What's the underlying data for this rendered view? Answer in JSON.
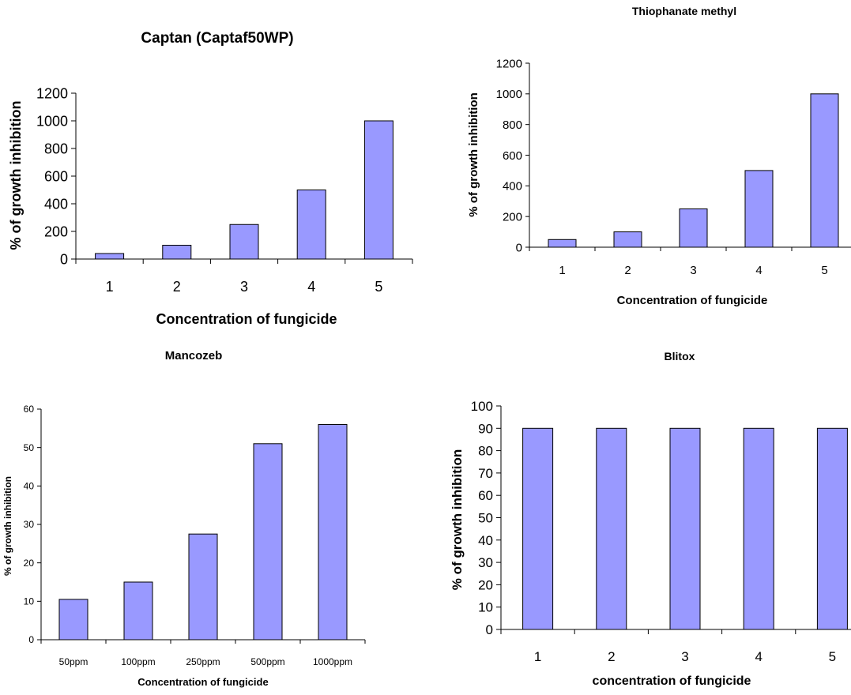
{
  "colors": {
    "bar_fill": "#9999ff",
    "bar_stroke": "#000000",
    "axis": "#000000"
  },
  "chart_data": [
    {
      "type": "bar",
      "title": "Captan (Captaf50WP)",
      "xlabel": "Concentration of fungicide",
      "ylabel": "% of growth inhibition",
      "categories": [
        "1",
        "2",
        "3",
        "4",
        "5"
      ],
      "values": [
        40,
        100,
        250,
        500,
        1000
      ],
      "ylim": [
        0,
        1200
      ],
      "yticks": [
        "0",
        "200",
        "400",
        "600",
        "800",
        "1000",
        "1200"
      ],
      "grid": false
    },
    {
      "type": "bar",
      "title": "Thiophanate methyl",
      "xlabel": "Concentration of fungicide",
      "ylabel": "% of growth inhibition",
      "categories": [
        "1",
        "2",
        "3",
        "4",
        "5"
      ],
      "values": [
        50,
        100,
        250,
        500,
        1000
      ],
      "ylim": [
        0,
        1200
      ],
      "yticks": [
        "0",
        "200",
        "400",
        "600",
        "800",
        "1000",
        "1200"
      ],
      "grid": false
    },
    {
      "type": "bar",
      "title": "Mancozeb",
      "xlabel": "Concentration of fungicide",
      "ylabel": "% of growth inhibition",
      "categories": [
        "50ppm",
        "100ppm",
        "250ppm",
        "500ppm",
        "1000ppm"
      ],
      "values": [
        10.5,
        15,
        27.5,
        51,
        56
      ],
      "ylim": [
        0,
        60
      ],
      "yticks": [
        "0",
        "10",
        "20",
        "30",
        "40",
        "50",
        "60"
      ],
      "grid": false
    },
    {
      "type": "bar",
      "title": "Blitox",
      "xlabel": "concentration of fungicide",
      "ylabel": "% of growth inhibition",
      "categories": [
        "1",
        "2",
        "3",
        "4",
        "5"
      ],
      "values": [
        90,
        90,
        90,
        90,
        90
      ],
      "ylim": [
        0,
        100
      ],
      "yticks": [
        "0",
        "10",
        "20",
        "30",
        "40",
        "50",
        "60",
        "70",
        "80",
        "90",
        "100"
      ],
      "grid": false
    }
  ]
}
